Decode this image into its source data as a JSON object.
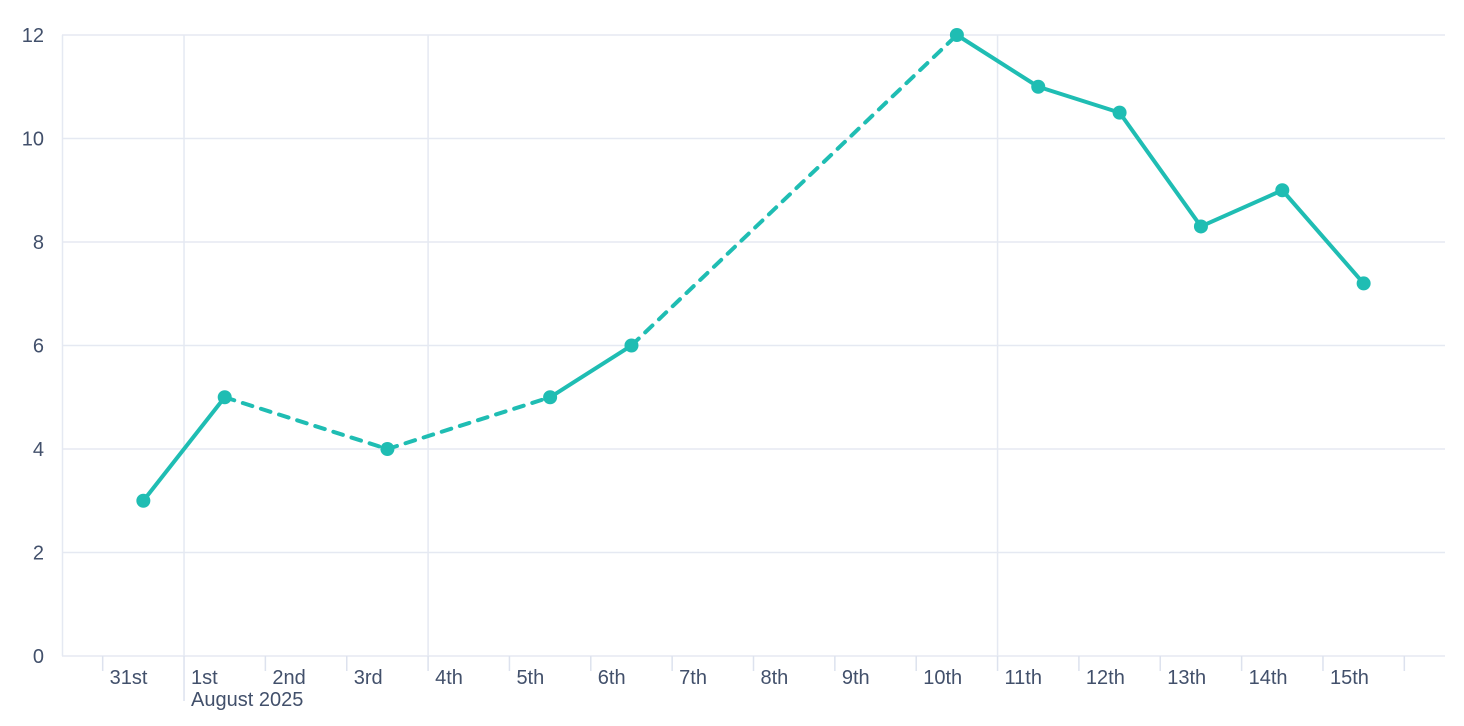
{
  "chart_data": {
    "type": "line",
    "title": "",
    "xlabel": "",
    "ylabel": "",
    "month_label": "August 2025",
    "x_tick_labels": [
      "31st",
      "1st",
      "2nd",
      "3rd",
      "4th",
      "5th",
      "6th",
      "7th",
      "8th",
      "9th",
      "10th",
      "11th",
      "12th",
      "13th",
      "14th",
      "15th"
    ],
    "yticks": [
      0,
      2,
      4,
      6,
      8,
      10,
      12
    ],
    "ylim": [
      0,
      12
    ],
    "x_axis_total_day_slots": 17,
    "month_label_day_index": 1,
    "vertical_gridline_day_indices": [
      1,
      4,
      11
    ],
    "legend": "none",
    "grid": "horizontal-on, weekly-vertical-on",
    "series": [
      {
        "name": "daily-values",
        "marker": "filled-circle",
        "gap_style": "dashed",
        "solid_style": "solid",
        "points": [
          {
            "x_label": "31st",
            "day_index": 0,
            "value": 3
          },
          {
            "x_label": "1st",
            "day_index": 1,
            "value": 5
          },
          {
            "x_label": "3rd",
            "day_index": 3,
            "value": 4
          },
          {
            "x_label": "5th",
            "day_index": 5,
            "value": 5
          },
          {
            "x_label": "6th",
            "day_index": 6,
            "value": 6
          },
          {
            "x_label": "10th",
            "day_index": 10,
            "value": 12
          },
          {
            "x_label": "11th",
            "day_index": 11,
            "value": 11
          },
          {
            "x_label": "12th",
            "day_index": 12,
            "value": 10.5
          },
          {
            "x_label": "13th",
            "day_index": 13,
            "value": 8.3
          },
          {
            "x_label": "14th",
            "day_index": 14,
            "value": 9
          },
          {
            "x_label": "15th",
            "day_index": 15,
            "value": 7.2
          }
        ]
      }
    ]
  },
  "colors": {
    "line": "#1fbdb3",
    "marker": "#1fbdb3",
    "grid": "#e5e9f2",
    "axis_line": "#e5e9f2",
    "tick": "#dde2ee",
    "axis_text": "#42506b",
    "background": "#ffffff"
  }
}
